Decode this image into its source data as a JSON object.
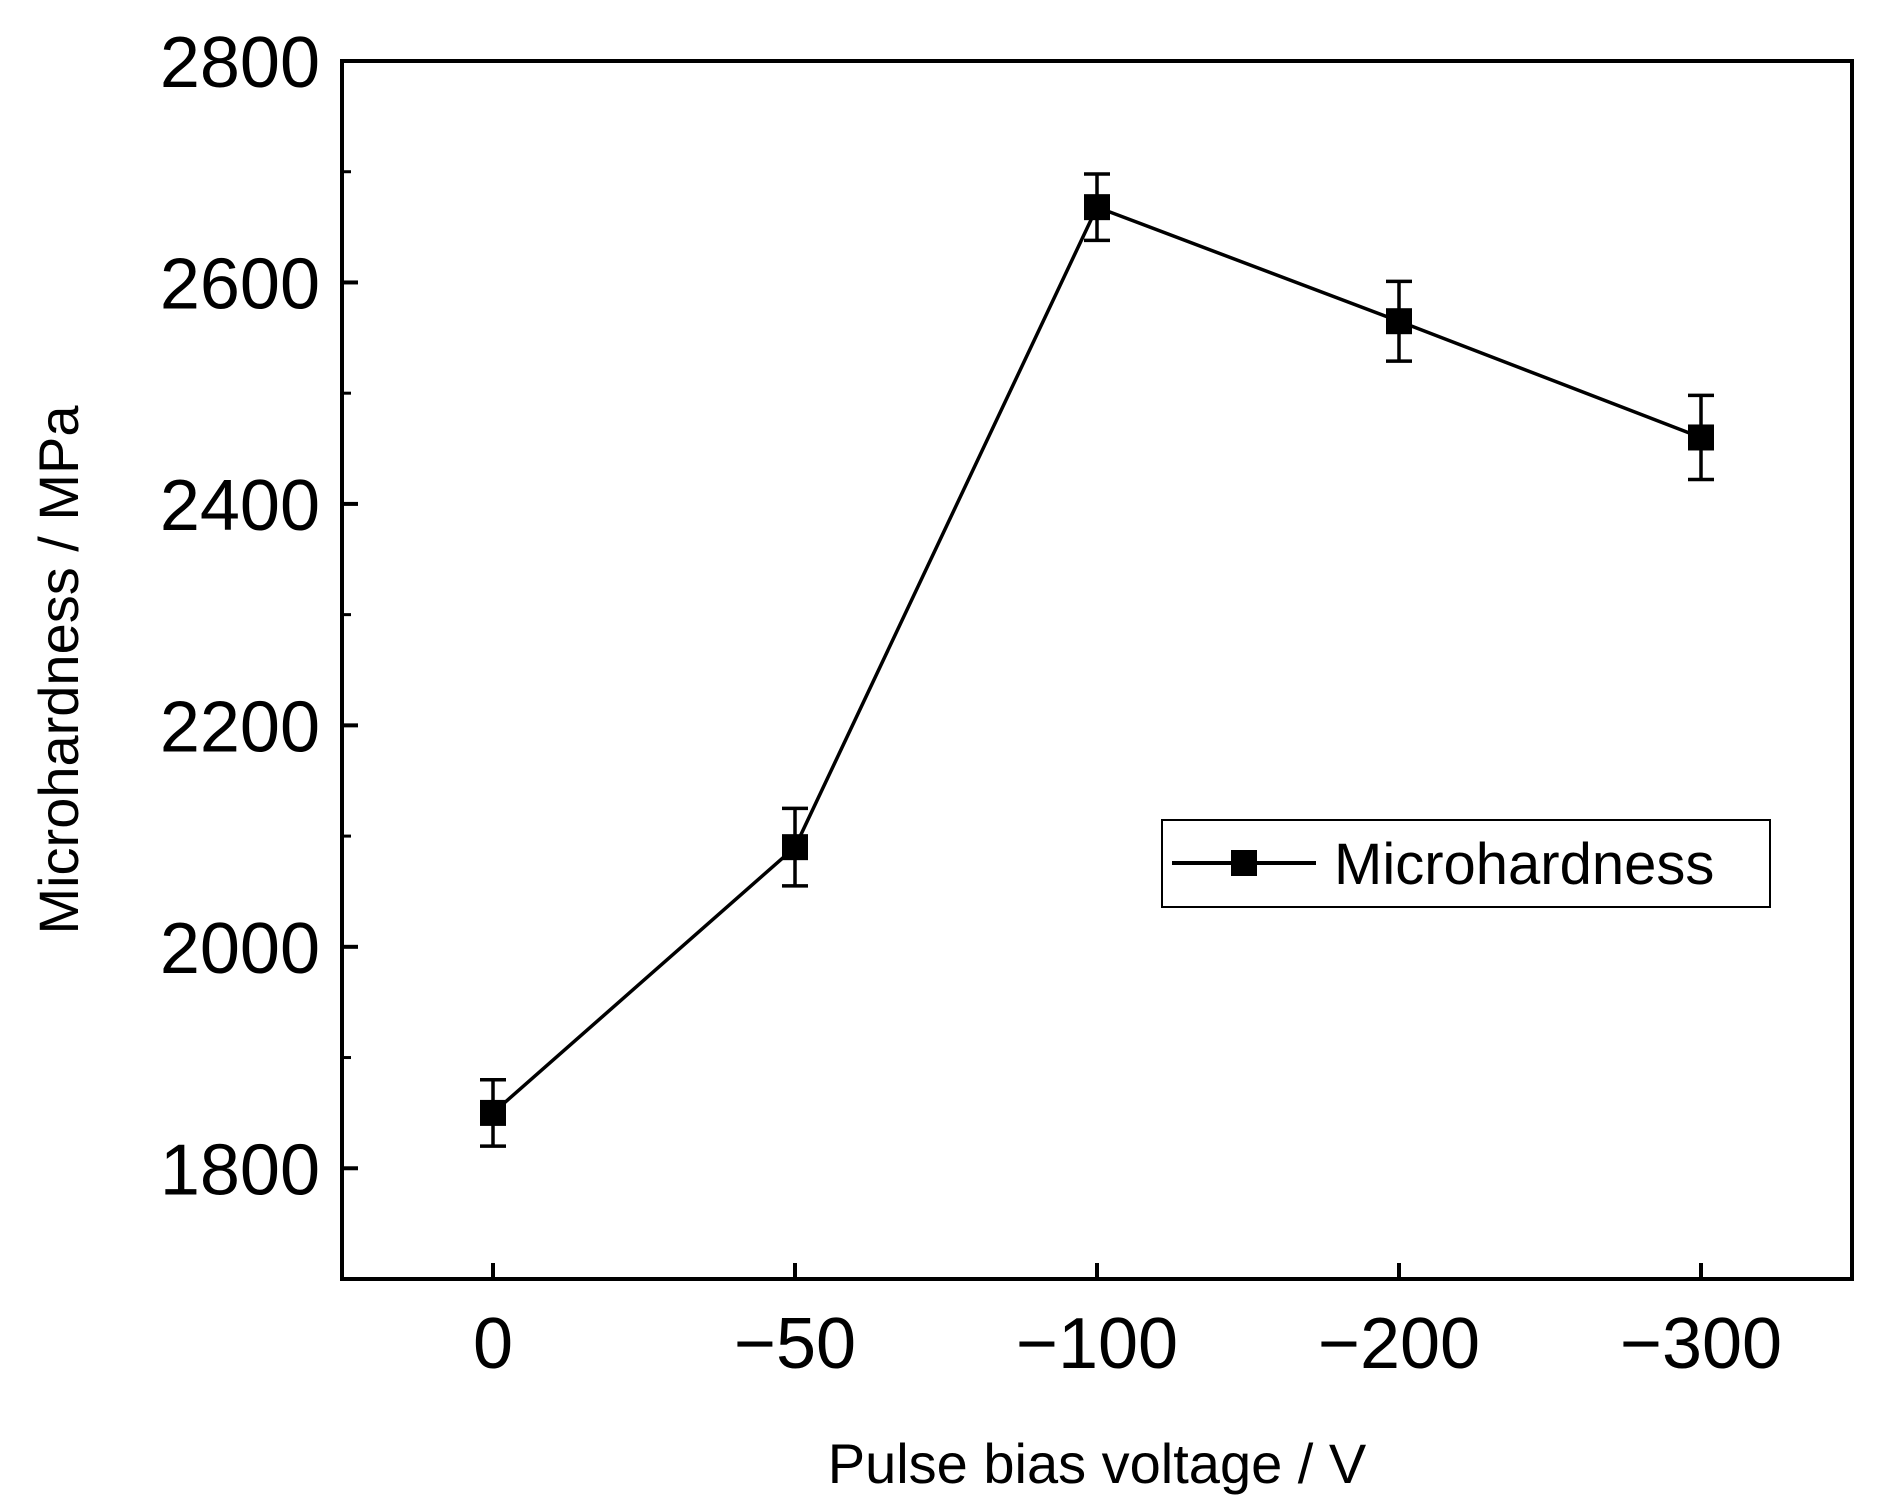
{
  "chart_data": {
    "type": "line",
    "categories": [
      "0",
      "−50",
      "−100",
      "−200",
      "−300"
    ],
    "series": [
      {
        "name": "Microhardness",
        "values": [
          1850,
          2090,
          2668,
          2565,
          2460
        ],
        "errors": [
          30,
          35,
          30,
          36,
          38
        ]
      }
    ],
    "xlabel": "Pulse bias voltage / V",
    "ylabel": "Microhardness / MPa",
    "ylim": [
      1700,
      2800
    ],
    "yticks": [
      1800,
      2000,
      2200,
      2400,
      2600,
      2800
    ],
    "yticks_minor": [
      1900,
      2100,
      2300,
      2500,
      2700
    ],
    "legend_position": "center-right",
    "grid": false,
    "colors": {
      "line": "#000000",
      "marker": "#000000",
      "frame": "#000000"
    }
  }
}
